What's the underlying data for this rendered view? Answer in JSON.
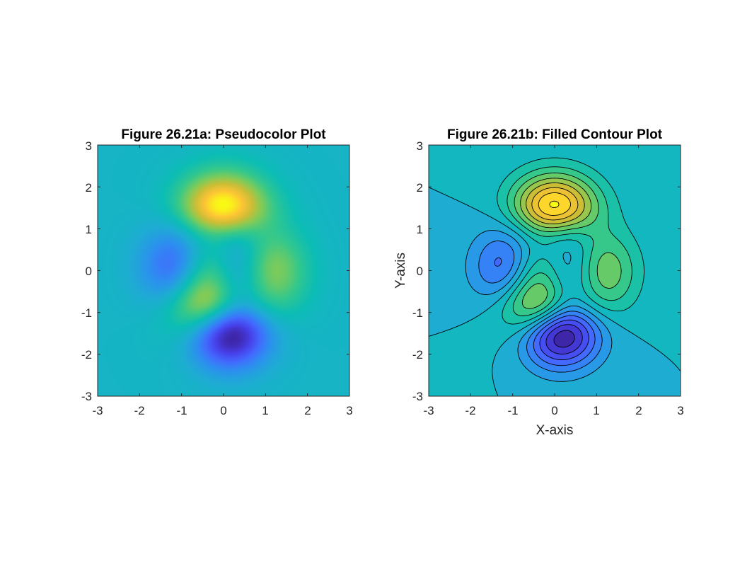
{
  "chart_data": [
    {
      "type": "heatmap",
      "title": "Figure 26.21a: Pseudocolor Plot",
      "xlabel": "",
      "ylabel": "",
      "xlim": [
        -3,
        3
      ],
      "ylim": [
        -3,
        3
      ],
      "xticks": [
        "-3",
        "-2",
        "-1",
        "0",
        "1",
        "2",
        "3"
      ],
      "yticks": [
        "-3",
        "-2",
        "-1",
        "0",
        "1",
        "2",
        "3"
      ],
      "function": "peaks(x,y)",
      "grid_points": 49,
      "colormap": "parula",
      "shading": "interp",
      "z_range": [
        -6.55,
        8.1
      ]
    },
    {
      "type": "heatmap",
      "title": "Figure 26.21b: Filled Contour Plot",
      "xlabel": "X-axis",
      "ylabel": "Y-axis",
      "xlim": [
        -3,
        3
      ],
      "ylim": [
        -3,
        3
      ],
      "xticks": [
        "-3",
        "-2",
        "-1",
        "0",
        "1",
        "2",
        "3"
      ],
      "yticks": [
        "-3",
        "-2",
        "-1",
        "0",
        "1",
        "2",
        "3"
      ],
      "function": "peaks(x,y)",
      "colormap": "parula",
      "contour_levels": [
        -6,
        -5,
        -4,
        -3,
        -2,
        -1,
        0,
        1,
        2,
        3,
        4,
        5,
        6,
        7,
        8
      ],
      "z_range": [
        -6.55,
        8.1
      ]
    }
  ]
}
